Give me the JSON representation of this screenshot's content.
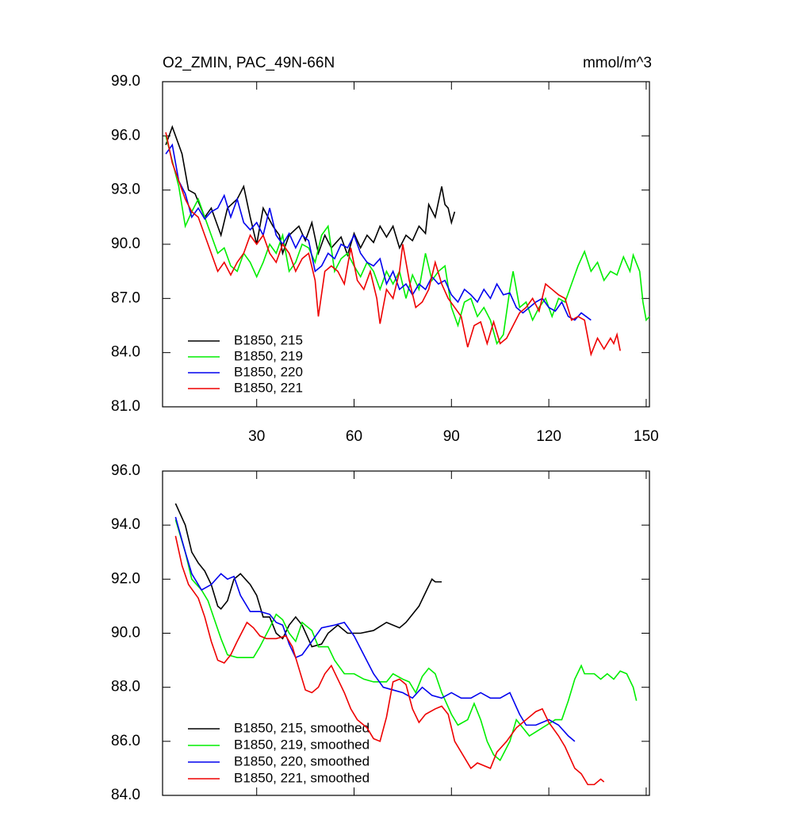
{
  "chart_data": [
    {
      "type": "line",
      "title": "O2_ZMIN, PAC_49N-66N",
      "units": "mmol/m^3",
      "xlim": [
        1,
        151
      ],
      "xticks": [
        30,
        60,
        90,
        120,
        150
      ],
      "ylim": [
        81,
        99
      ],
      "yticks": [
        {
          "value": 81,
          "label": "81.0"
        },
        {
          "value": 84,
          "label": "84.0"
        },
        {
          "value": 87,
          "label": "87.0"
        },
        {
          "value": 90,
          "label": "90.0"
        },
        {
          "value": 93,
          "label": "93.0"
        },
        {
          "value": 96,
          "label": "96.0"
        },
        {
          "value": 99,
          "label": "99.0"
        }
      ],
      "legend": "lower left",
      "series": [
        {
          "name": "B1850, 215",
          "color": "#000000",
          "x": [
            2,
            4,
            7,
            9,
            11,
            14,
            16,
            19,
            21,
            24,
            26,
            28,
            30,
            32,
            35,
            37,
            38,
            40,
            43,
            45,
            47,
            49,
            51,
            53,
            56,
            58,
            60,
            62,
            64,
            66,
            68,
            70,
            72,
            74,
            76,
            78,
            80,
            82,
            83,
            85,
            87,
            88,
            89,
            90,
            91
          ],
          "values": [
            95.5,
            96.5,
            95,
            93,
            92.8,
            91.5,
            92,
            90.5,
            92,
            92.5,
            93.2,
            91.5,
            90,
            92,
            91,
            90.5,
            89.5,
            90.5,
            91,
            90.2,
            91.2,
            89.5,
            90.5,
            89.8,
            90.4,
            89.4,
            90.6,
            89.8,
            90.5,
            90.1,
            91,
            90.4,
            91,
            89.8,
            90.5,
            90.2,
            91,
            90.6,
            92.2,
            91.5,
            93.2,
            92.2,
            92,
            91.2,
            91.8
          ]
        },
        {
          "name": "B1850, 219",
          "color": "#00ee00",
          "x": [
            2,
            6,
            8,
            10,
            12,
            14,
            16,
            18,
            20,
            22,
            24,
            26,
            28,
            30,
            32,
            34,
            36,
            38,
            40,
            42,
            44,
            46,
            48,
            50,
            52,
            54,
            56,
            58,
            60,
            62,
            64,
            66,
            68,
            70,
            72,
            74,
            76,
            78,
            80,
            82,
            84,
            86,
            88,
            90,
            92,
            94,
            96,
            98,
            100,
            102,
            104,
            106,
            108,
            109,
            111,
            113,
            115,
            117,
            119,
            121,
            123,
            125,
            127,
            129,
            131,
            133,
            135,
            137,
            139,
            141,
            143,
            145,
            146,
            148,
            149,
            150,
            151
          ],
          "values": [
            96,
            93.2,
            91,
            91.8,
            92.5,
            91.5,
            90.5,
            89.5,
            89.8,
            88.8,
            88.5,
            89.5,
            89,
            88.2,
            89,
            90,
            89.5,
            90.5,
            88.5,
            89,
            90,
            89.8,
            89,
            90.5,
            91,
            88.5,
            89.2,
            89.5,
            88.8,
            88.2,
            89,
            88.5,
            87.5,
            88.5,
            87.8,
            88.5,
            87,
            88.3,
            87.5,
            89.5,
            88,
            88.5,
            88.8,
            86.5,
            85.5,
            86.8,
            87,
            86,
            86.5,
            85.8,
            84.5,
            85,
            87.5,
            88.5,
            86.5,
            86.8,
            85.8,
            86.5,
            87,
            86,
            87,
            86.8,
            87.8,
            88.8,
            89.6,
            88.5,
            89,
            88,
            88.5,
            88.3,
            89.3,
            88.5,
            89.4,
            88.5,
            86.8,
            85.8,
            86
          ]
        },
        {
          "name": "B1850, 220",
          "color": "#0000ee",
          "x": [
            2,
            4,
            6,
            8,
            10,
            12,
            14,
            16,
            18,
            20,
            22,
            24,
            26,
            28,
            30,
            32,
            34,
            36,
            38,
            40,
            42,
            44,
            46,
            48,
            50,
            52,
            54,
            56,
            58,
            60,
            62,
            64,
            66,
            68,
            70,
            72,
            74,
            76,
            78,
            80,
            82,
            84,
            86,
            88,
            90,
            92,
            94,
            96,
            98,
            100,
            102,
            104,
            106,
            108,
            110,
            112,
            114,
            116,
            118,
            120,
            122,
            124,
            126,
            128,
            130,
            133
          ],
          "values": [
            95,
            95.5,
            93.5,
            92.8,
            91.5,
            92,
            91.4,
            91.8,
            92,
            92.7,
            91.5,
            92.5,
            91.2,
            90.8,
            91.2,
            90.5,
            92,
            90.5,
            90,
            90.6,
            89.8,
            90.5,
            90.2,
            88.5,
            88.8,
            89.5,
            89.2,
            90,
            89.8,
            90.5,
            89.5,
            89,
            88.8,
            89.2,
            87.8,
            88.5,
            87.5,
            87.8,
            87.2,
            87.8,
            87.5,
            88.2,
            87.8,
            88,
            87.2,
            86.8,
            87.5,
            87.2,
            86.8,
            87.5,
            87,
            87.8,
            87.2,
            87.3,
            86.5,
            86.2,
            86.5,
            86.8,
            87,
            86.5,
            86.3,
            86.8,
            86,
            85.8,
            86.2,
            85.8
          ]
        },
        {
          "name": "B1850, 221",
          "color": "#ee0000",
          "x": [
            2,
            4,
            6,
            8,
            10,
            12,
            14,
            16,
            18,
            20,
            22,
            24,
            26,
            28,
            30,
            32,
            34,
            36,
            38,
            40,
            42,
            44,
            46,
            48,
            49,
            51,
            53,
            55,
            57,
            59,
            61,
            63,
            65,
            67,
            68,
            70,
            72,
            74,
            75,
            77,
            79,
            81,
            83,
            85,
            87,
            89,
            91,
            93,
            95,
            97,
            99,
            101,
            103,
            105,
            107,
            109,
            111,
            113,
            115,
            117,
            119,
            121,
            123,
            125,
            127,
            129,
            131,
            133,
            135,
            137,
            139,
            140,
            141,
            142
          ],
          "values": [
            96.2,
            94.5,
            93.5,
            92.5,
            91.8,
            91.5,
            90.5,
            89.5,
            88.5,
            89,
            88.3,
            89,
            89.5,
            90.5,
            90,
            90.5,
            89.5,
            89,
            90,
            89.5,
            88.5,
            89.2,
            89.5,
            88,
            86,
            88.5,
            88.8,
            88.5,
            87.8,
            89.8,
            88,
            87.5,
            88.5,
            87,
            85.6,
            87.5,
            87,
            88.5,
            90,
            88,
            86.5,
            86.8,
            87.5,
            89,
            87.8,
            87,
            86.5,
            86,
            84.3,
            85.5,
            85.7,
            84.5,
            85.7,
            84.5,
            84.8,
            85.5,
            86.2,
            86.5,
            87,
            86.3,
            87.8,
            87.5,
            87.2,
            87,
            85.8,
            86,
            85.8,
            83.9,
            84.8,
            84.2,
            84.8,
            84.5,
            85,
            84.1
          ]
        }
      ]
    },
    {
      "type": "line",
      "xlim": [
        1,
        151
      ],
      "xticks": [
        30,
        60,
        90,
        120,
        150
      ],
      "ylim": [
        84,
        96
      ],
      "yticks": [
        {
          "value": 84,
          "label": "84.0"
        },
        {
          "value": 86,
          "label": "86.0"
        },
        {
          "value": 88,
          "label": "88.0"
        },
        {
          "value": 90,
          "label": "90.0"
        },
        {
          "value": 92,
          "label": "92.0"
        },
        {
          "value": 94,
          "label": "94.0"
        },
        {
          "value": 96,
          "label": "96.0"
        }
      ],
      "legend": "lower left",
      "series": [
        {
          "name": "B1850, 215, smoothed",
          "color": "#000000",
          "x": [
            5,
            8,
            10,
            12,
            14,
            16,
            18,
            19,
            21,
            23,
            25,
            28,
            30,
            32,
            34,
            36,
            38,
            40,
            42,
            44,
            47,
            50,
            52,
            55,
            58,
            62,
            66,
            70,
            74,
            76,
            78,
            80,
            82,
            84,
            85,
            87
          ],
          "values": [
            94.8,
            94,
            93,
            92.6,
            92.3,
            91.8,
            91,
            90.9,
            91.2,
            92,
            92.2,
            91.8,
            91.4,
            90.6,
            90.6,
            90,
            89.8,
            90.3,
            90.6,
            90.3,
            89.5,
            89.6,
            90,
            90.3,
            90,
            90,
            90.1,
            90.4,
            90.2,
            90.4,
            90.7,
            91,
            91.5,
            92,
            91.9,
            91.9
          ]
        },
        {
          "name": "B1850, 219, smoothed",
          "color": "#00ee00",
          "x": [
            5,
            8,
            10,
            13,
            15,
            17,
            19,
            21,
            24,
            27,
            29,
            31,
            34,
            36,
            38,
            40,
            42,
            44,
            47,
            49,
            52,
            54,
            57,
            60,
            63,
            66,
            70,
            72,
            75,
            77,
            79,
            81,
            83,
            85,
            87,
            90,
            92,
            95,
            97,
            99,
            101,
            103,
            105,
            108,
            110,
            114,
            118,
            122,
            124,
            126,
            128,
            130,
            131,
            134,
            136,
            138,
            140,
            142,
            144,
            146,
            147
          ],
          "values": [
            94.2,
            93,
            92,
            91.6,
            91.2,
            90.5,
            89.8,
            89.2,
            89.1,
            89.1,
            89.1,
            89.5,
            90.2,
            90.7,
            90.5,
            90,
            89.7,
            90.4,
            90.1,
            89.5,
            89.5,
            89,
            88.5,
            88.5,
            88.3,
            88.2,
            88.2,
            88.5,
            88.3,
            88.2,
            87.8,
            88.4,
            88.7,
            88.5,
            87.8,
            87,
            86.6,
            86.8,
            87.4,
            86.8,
            86,
            85.5,
            85.3,
            86,
            86.8,
            86.2,
            86.5,
            86.8,
            86.8,
            87.5,
            88.3,
            88.8,
            88.5,
            88.5,
            88.3,
            88.5,
            88.3,
            88.6,
            88.5,
            88,
            87.5
          ]
        },
        {
          "name": "B1850, 220, smoothed",
          "color": "#0000ee",
          "x": [
            5,
            8,
            10,
            13,
            16,
            19,
            21,
            23,
            25,
            28,
            31,
            34,
            36,
            38,
            40,
            42,
            44,
            47,
            50,
            54,
            57,
            60,
            63,
            66,
            69,
            72,
            75,
            78,
            81,
            84,
            87,
            90,
            93,
            96,
            99,
            102,
            105,
            108,
            111,
            113,
            116,
            120,
            123,
            126,
            128
          ],
          "values": [
            94.3,
            93,
            92.2,
            91.6,
            91.8,
            92.2,
            92,
            92.1,
            91.4,
            90.8,
            90.8,
            90.7,
            90.4,
            90.3,
            89.6,
            89.1,
            89.2,
            89.7,
            90.2,
            90.3,
            90.4,
            89.9,
            89.2,
            88.5,
            88,
            87.9,
            87.8,
            87.6,
            88,
            87.7,
            87.6,
            87.8,
            87.6,
            87.6,
            87.8,
            87.6,
            87.6,
            87.8,
            87,
            86.6,
            86.6,
            86.8,
            86.6,
            86.2,
            86
          ]
        },
        {
          "name": "B1850, 221, smoothed",
          "color": "#ee0000",
          "x": [
            5,
            7,
            9,
            12,
            14,
            16,
            18,
            20,
            22,
            24,
            27,
            29,
            31,
            33,
            36,
            39,
            41,
            43,
            45,
            47,
            49,
            51,
            53,
            55,
            57,
            59,
            61,
            64,
            66,
            68,
            70,
            72,
            74,
            76,
            78,
            80,
            82,
            85,
            87,
            89,
            91,
            93,
            96,
            98,
            100,
            102,
            104,
            107,
            110,
            113,
            116,
            118,
            120,
            123,
            125,
            128,
            130,
            132,
            134,
            136,
            137
          ],
          "values": [
            93.6,
            92.5,
            91.8,
            91.3,
            90.6,
            89.7,
            89,
            88.9,
            89.2,
            89.7,
            90.4,
            90.2,
            89.9,
            89.8,
            89.8,
            89.9,
            89.5,
            88.7,
            87.9,
            87.8,
            88,
            88.5,
            88.8,
            88.3,
            87.8,
            87.2,
            86.8,
            86.5,
            86.1,
            86,
            86.9,
            88.2,
            88.3,
            88.1,
            87.2,
            86.7,
            87,
            87.2,
            87.3,
            87,
            86,
            85.6,
            85,
            85.2,
            85.1,
            85,
            85.6,
            86,
            86.5,
            86.8,
            87.1,
            87.2,
            86.7,
            86.2,
            85.8,
            85,
            84.8,
            84.4,
            84.4,
            84.6,
            84.5
          ]
        }
      ]
    }
  ]
}
